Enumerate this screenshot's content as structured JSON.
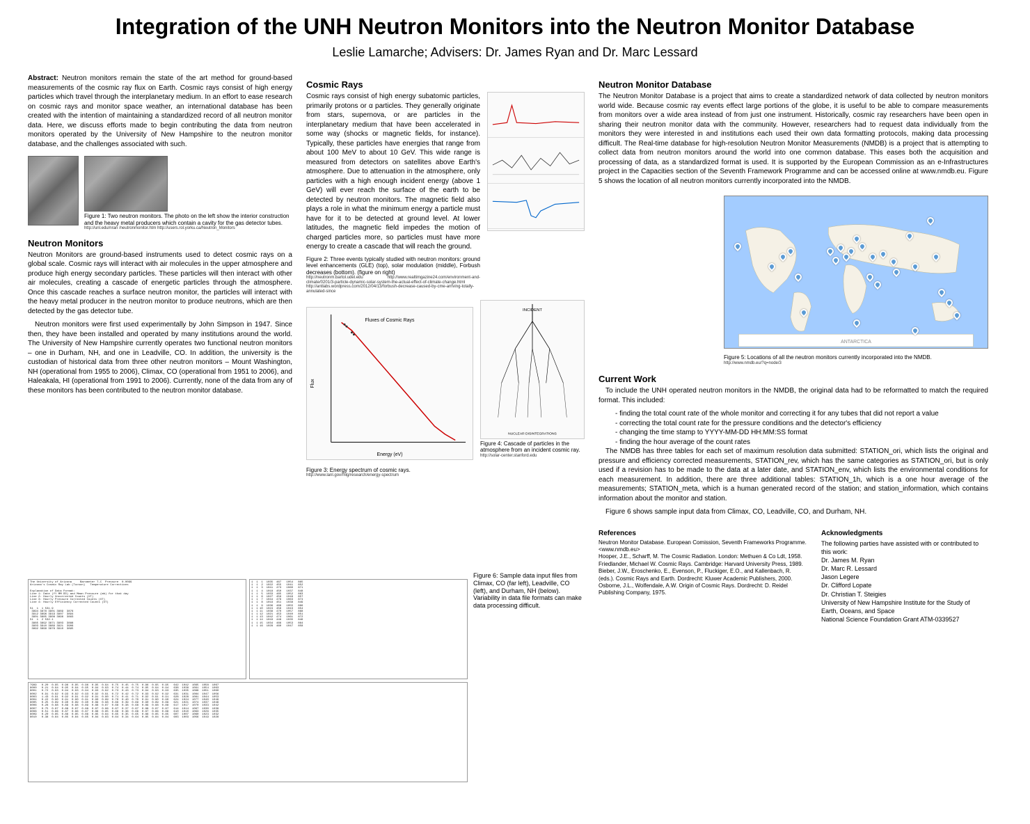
{
  "title": "Integration of the UNH Neutron Monitors into the Neutron Monitor Database",
  "authors": "Leslie Lamarche; Advisers: Dr. James Ryan and Dr. Marc Lessard",
  "abstract": {
    "heading": "Abstract:",
    "text": "Neutron monitors remain the state of the art method for ground-based measurements of the cosmic ray flux on Earth. Cosmic rays consist of high energy particles which travel through the interplanetary medium. In an effort to ease research on cosmic rays and monitor space weather, an international database has been created with the intention of maintaining a standardized record of all neutron monitor data. Here, we discuss efforts made to begin contributing the data from neutron monitors operated by the University of New Hampshire to the neutron monitor database, and the challenges associated with such."
  },
  "fig1": {
    "caption": "Figure 1: Two neutron monitors. The photo on the left show the interior construction and the heavy metal producers which contain a cavity for the gas detector tubes.",
    "urls": "http://unl.edu/nran /neutronmonitor.htm\nhttp://users.rol.yorku.ca/Neutron_Monitors"
  },
  "neutron_monitors": {
    "heading": "Neutron Monitors",
    "p1": "Neutron Monitors are ground-based instruments used to detect cosmic rays on a global scale. Cosmic rays will interact with air molecules in the upper atmosphere and produce high energy secondary particles. These particles will then interact with other air molecules, creating a cascade of energetic particles through the atmosphere. Once this cascade reaches a surface neutron monitor, the particles will interact with the heavy metal producer in the neutron monitor to produce neutrons, which are then detected by the gas detector tube.",
    "p2": "Neutron monitors were first used experimentally by John Simpson in 1947. Since then, they have been installed and operated by many institutions around the world. The University of New Hampshire currently operates two functional neutron monitors – one in Durham, NH, and one in Leadville, CO. In addition, the university is the custodian of historical data from three other neutron monitors – Mount Washington, NH (operational from 1955 to 2006), Climax, CO (operational from 1951 to 2006), and Haleakala, HI (operational from 1991 to 2006). Currently, none of the data from any of these monitors has been contributed to the neutron monitor database."
  },
  "cosmic_rays": {
    "heading": "Cosmic Rays",
    "text": "Cosmic rays consist of high energy subatomic particles, primarily protons or α particles. They generally originate from stars, supernova, or are particles in the interplanetary medium that have been accelerated in some way (shocks or magnetic fields, for instance). Typically, these particles have energies that range from about 100 MeV to about 10 GeV. This wide range is measured from detectors on satellites above Earth's atmosphere. Due to attenuation in the atmosphere, only particles with a high enough incident energy (above 1 GeV) will ever reach the surface of the earth to be detected by neutron monitors. The magnetic field also plays a role in what the minimum energy a particle must have for it to be detected at ground level. At lower latitudes, the magnetic field impedes the motion of charged particles more, so particles must have more energy to create a cascade that will reach the ground."
  },
  "fig2": {
    "caption": "Figure 2: Three events typically studied with neutron monitors: ground level enhancements (GLE) (top), solar modulation (middle), Forbush decreases (bottom). (figure on right)",
    "urls": "http://neutronm.bartol.udel.edu\nhttp://www.realtimgazine24.com/environment-and-climate/0201/3-particle-dynamic-solar-system-the-actual-effect-of-climate-change.html\nhttp://antlabs.wordpress.com/2012/04/13/forbush-decrease-caused-by-cme-arriving-totally-annulated-since"
  },
  "fig3": {
    "caption": "Figure 3: Energy spectrum of cosmic rays.",
    "url": "http://www.lanl.gov/mlg/research/energy-spectrum"
  },
  "fig4": {
    "caption": "Figure 4: Cascade of particles in the atmosphere from an incident cosmic ray.",
    "url": "http://solar-center.stanford.edu"
  },
  "nmdb": {
    "heading": "Neutron Monitor Database",
    "text": "The Neutron Monitor Database is a project that aims to create a standardized network of data collected by neutron monitors world wide. Because cosmic ray events effect large portions of the globe, it is useful to be able to compare measurements from monitors over a wide area instead of from just one instrument. Historically, cosmic ray researchers have been open in sharing their neutron monitor data with the community. However, researchers had to request data individually from the monitors they were interested in and institutions each used their own data formatting protocols, making data processing difficult. The Real-time database for high-resolution Neutron Monitor Measurements (NMDB) is a project that is attempting to collect data from neutron monitors around the world into one common database. This eases both the acquisition and processing of data, as a standardized format is used. It is supported by the European Commission as an e-Infrastructures project in the Capacities section of the Seventh Framework Programme and can be accessed online at www.nmdb.eu. Figure 5 shows the location of all neutron monitors currently incorporated into the NMDB."
  },
  "fig5": {
    "caption": "Figure 5: Locations of all the neutron monitors currently incorporated into the NMDB.",
    "url": "http://www.nmdb.eu/?q=node/3",
    "marker_color": "#5b9bd5",
    "ocean_color": "#a3ccff",
    "land_color": "#f5f1e6",
    "markers": [
      {
        "x": 78,
        "y": 18
      },
      {
        "x": 70,
        "y": 28
      },
      {
        "x": 60,
        "y": 40
      },
      {
        "x": 64,
        "y": 45
      },
      {
        "x": 56,
        "y": 42
      },
      {
        "x": 52,
        "y": 35
      },
      {
        "x": 50,
        "y": 30
      },
      {
        "x": 48,
        "y": 38
      },
      {
        "x": 46,
        "y": 42
      },
      {
        "x": 44,
        "y": 36
      },
      {
        "x": 42,
        "y": 44
      },
      {
        "x": 40,
        "y": 38
      },
      {
        "x": 55,
        "y": 55
      },
      {
        "x": 58,
        "y": 60
      },
      {
        "x": 65,
        "y": 52
      },
      {
        "x": 72,
        "y": 48
      },
      {
        "x": 80,
        "y": 42
      },
      {
        "x": 82,
        "y": 65
      },
      {
        "x": 85,
        "y": 72
      },
      {
        "x": 88,
        "y": 80
      },
      {
        "x": 25,
        "y": 38
      },
      {
        "x": 22,
        "y": 42
      },
      {
        "x": 18,
        "y": 48
      },
      {
        "x": 28,
        "y": 55
      },
      {
        "x": 30,
        "y": 78
      },
      {
        "x": 50,
        "y": 85
      },
      {
        "x": 72,
        "y": 90
      },
      {
        "x": 5,
        "y": 35
      }
    ]
  },
  "current_work": {
    "heading": "Current Work",
    "intro": "To include the UNH operated neutron monitors in the NMDB, the original data had to be reformatted to match the required format. This included:",
    "items": [
      "- finding the total count rate of the whole monitor and correcting it for any tubes that did not report a value",
      "- correcting the total count rate for the pressure conditions and the detector's efficiency",
      "- changing the time stamp to YYYY-MM-DD HH:MM:SS format",
      "- finding the hour average of the count rates"
    ],
    "tables": "The NMDB has three tables for each set of maximum resolution data submitted: STATION_ori, which lists the original and pressure and efficiency corrected measurements, STATION_rev, which has the same categories as STATION_ori, but is only used if a revision has to be made to the data at a later date, and STATION_env, which lists the environmental conditions for each measurement. In addition, there are three additional tables: STATION_1h, which is a one hour average of the measurements; STATION_meta, which is a human generated record of the station; and station_information, which contains information about the monitor and station.",
    "closing": "Figure 6 shows sample input data from Climax, CO, Leadville, CO, and Durham, NH."
  },
  "fig6": {
    "caption": "Figure 6: Sample data input files from Climax, CO (far left), Leadville, CO (left), and Durham, NH (below). Variability in data file formats can make data processing difficult."
  },
  "spectrum": {
    "line_color": "#cc0000",
    "axis_color": "#000000",
    "xlim": [
      8,
      21
    ],
    "ylim": [
      -28,
      4
    ],
    "points": [
      [
        9,
        2
      ],
      [
        10,
        0
      ],
      [
        11,
        -3
      ],
      [
        12,
        -6
      ],
      [
        13,
        -9
      ],
      [
        14,
        -12
      ],
      [
        15,
        -15
      ],
      [
        16,
        -18
      ],
      [
        17,
        -21
      ],
      [
        18,
        -24
      ],
      [
        19,
        -26
      ],
      [
        20,
        -27.5
      ]
    ],
    "xlabel": "Energy (eV)",
    "ylabel": "Flux"
  },
  "references": {
    "heading": "References",
    "items": [
      "Neutron Monitor Database. European Comission, Seventh Frameworks Programme. <www.nmdb.eu>",
      "Hooper, J.E., Scharff, M. The Cosmic Radiation. London: Methuen & Co Ldt, 1958.",
      "Friedlander, Michael W. Cosmic Rays. Cambridge: Harvard University Press, 1989.",
      "Bieber, J.W., Eroschenko, E., Evenson, P., Fluckiger, E.O., and Kallenbach, R. (eds.). Cosmic Rays and Earth. Dordrecht: Kluwer Academic Publishers, 2000.",
      "Osborne, J.L., Wolfendale, A.W. Origin of Cosmic Rays. Dordrecht: D. Reidel Publishing Company, 1975."
    ]
  },
  "acknowledgments": {
    "heading": "Acknowledgments",
    "intro": "The following parties have assisted with or contributed to this work:",
    "items": [
      "Dr. James M. Ryan",
      "Dr. Marc R. Lessard",
      "Jason Legere",
      "Dr. Clifford Lopate",
      "Dr. Christian T. Steigies",
      "University of New Hampshire Institute for the Study of Earth, Oceans, and Space",
      "National Science Foundation Grant ATM-0339527"
    ]
  },
  "sample_data": {
    "climax": "The University of Arizona     Barometer T-C  Pressure  0.0099\nArizona's Cosmic Ray Lab (Tucson)   Temperature Corrections\n\nExplanation of Data Format:\nLine 1: Date (YY MM DD) and Mean Pressure (mb) for that day\nLine 2: Hourly Uncorrected Counts (UT)\nLine 3: Hourly Pressure Corrected Counts (UT)\nLine 4: Hourly Efficiency Corrected Counts (UT)\n\n51  1  1 531.9\n 3894 3878 3901 3889  3876\n 3912 3896 3919 3907  3894\n 3901 3885 3908 3896  3883\n51  1  2 532.1\n 3885 3892 3871 3903  3888\n 3903 3910 3889 3921  3906\n 3892 3899 3878 3910  3895",
    "leadville": "1  1  1  1035  467   1054   865\n1  1  2  1022  455   1041   852\n1  1  3  1041  473   1060   871\n1  1  4  1018  450   1037   848\n1  1  5  1033  465   1052   863\n1  1  6  1027  459   1046   857\n1  1  7  1044  476   1063   874\n1  1  8  1019  451   1038   849\n1  1  9  1036  468   1055   866\n1  1 10  1024  456   1043   854\n1  1 11  1038  470   1057   868\n1  1 12  1021  453   1040   851\n1  1 13  1042  474   1061   872\n1  1 14  1016  448   1035   846\n1  1 15  1034  466   1053   864\n1  1 16  1028  460   1047   858",
    "durham": "7999   0.20  0.95  0.96  0.95  0.96  0.95  0.94  0.75  0.45  0.75  0.96  0.95  0.95   642  1042  1095  1058  1067\n8000   0.21  0.94  0.95  0.94  0.95  0.94  0.93  0.74  0.44  0.74  0.95  0.94  0.94   638  1038  1091  1054  1063\n8001   0.72  0.93  0.94  0.93  0.94  0.93  0.92  0.73  0.43  0.73  0.94  0.93  0.93   635  1035  1088  1051  1060\n8002   0.91  0.92  0.93  0.92  0.93  0.92  0.91  0.72  0.42  0.72  0.93  0.92  0.92   631  1031  1084  1047  1056\n8003   1.43  0.91  0.92  0.91  0.92  0.91  0.90  0.71  0.41  0.71  0.92  0.91  0.91   628  1028  1081  1044  1053\n8004   0.22  0.90  0.91  0.90  0.91  0.90  0.89  0.70  0.40  0.70  0.91  0.90  0.90   624  1024  1077  1040  1049\n8005   0.25  0.89  0.90  0.89  0.90  0.89  0.88  0.69  0.39  0.69  0.90  0.89  0.89   621  1021  1074  1037  1046\n8006   0.28  0.88  0.89  0.88  0.89  0.88  0.87  0.68  0.38  0.68  0.89  0.88  0.88   617  1017  1070  1033  1042\n8007   0.75  0.87  0.88  0.87  0.88  0.87  0.86  0.67  0.37  0.67  0.88  0.87  0.87   614  1014  1067  1030  1039\n8008   0.51  0.86  0.87  0.86  0.87  0.86  0.85  0.66  0.36  0.66  0.87  0.86  0.86   610  1010  1063  1026  1035\n8009   0.20  0.85  0.86  0.85  0.86  0.85  0.84  0.65  0.35  0.65  0.86  0.85  0.85   607  1007  1060  1023  1032\n8010   0.38  0.84  0.85  0.84  0.85  0.84  0.83  0.64  0.34  0.64  0.85  0.84  0.84   603  1003  1056  1019  1028"
  }
}
